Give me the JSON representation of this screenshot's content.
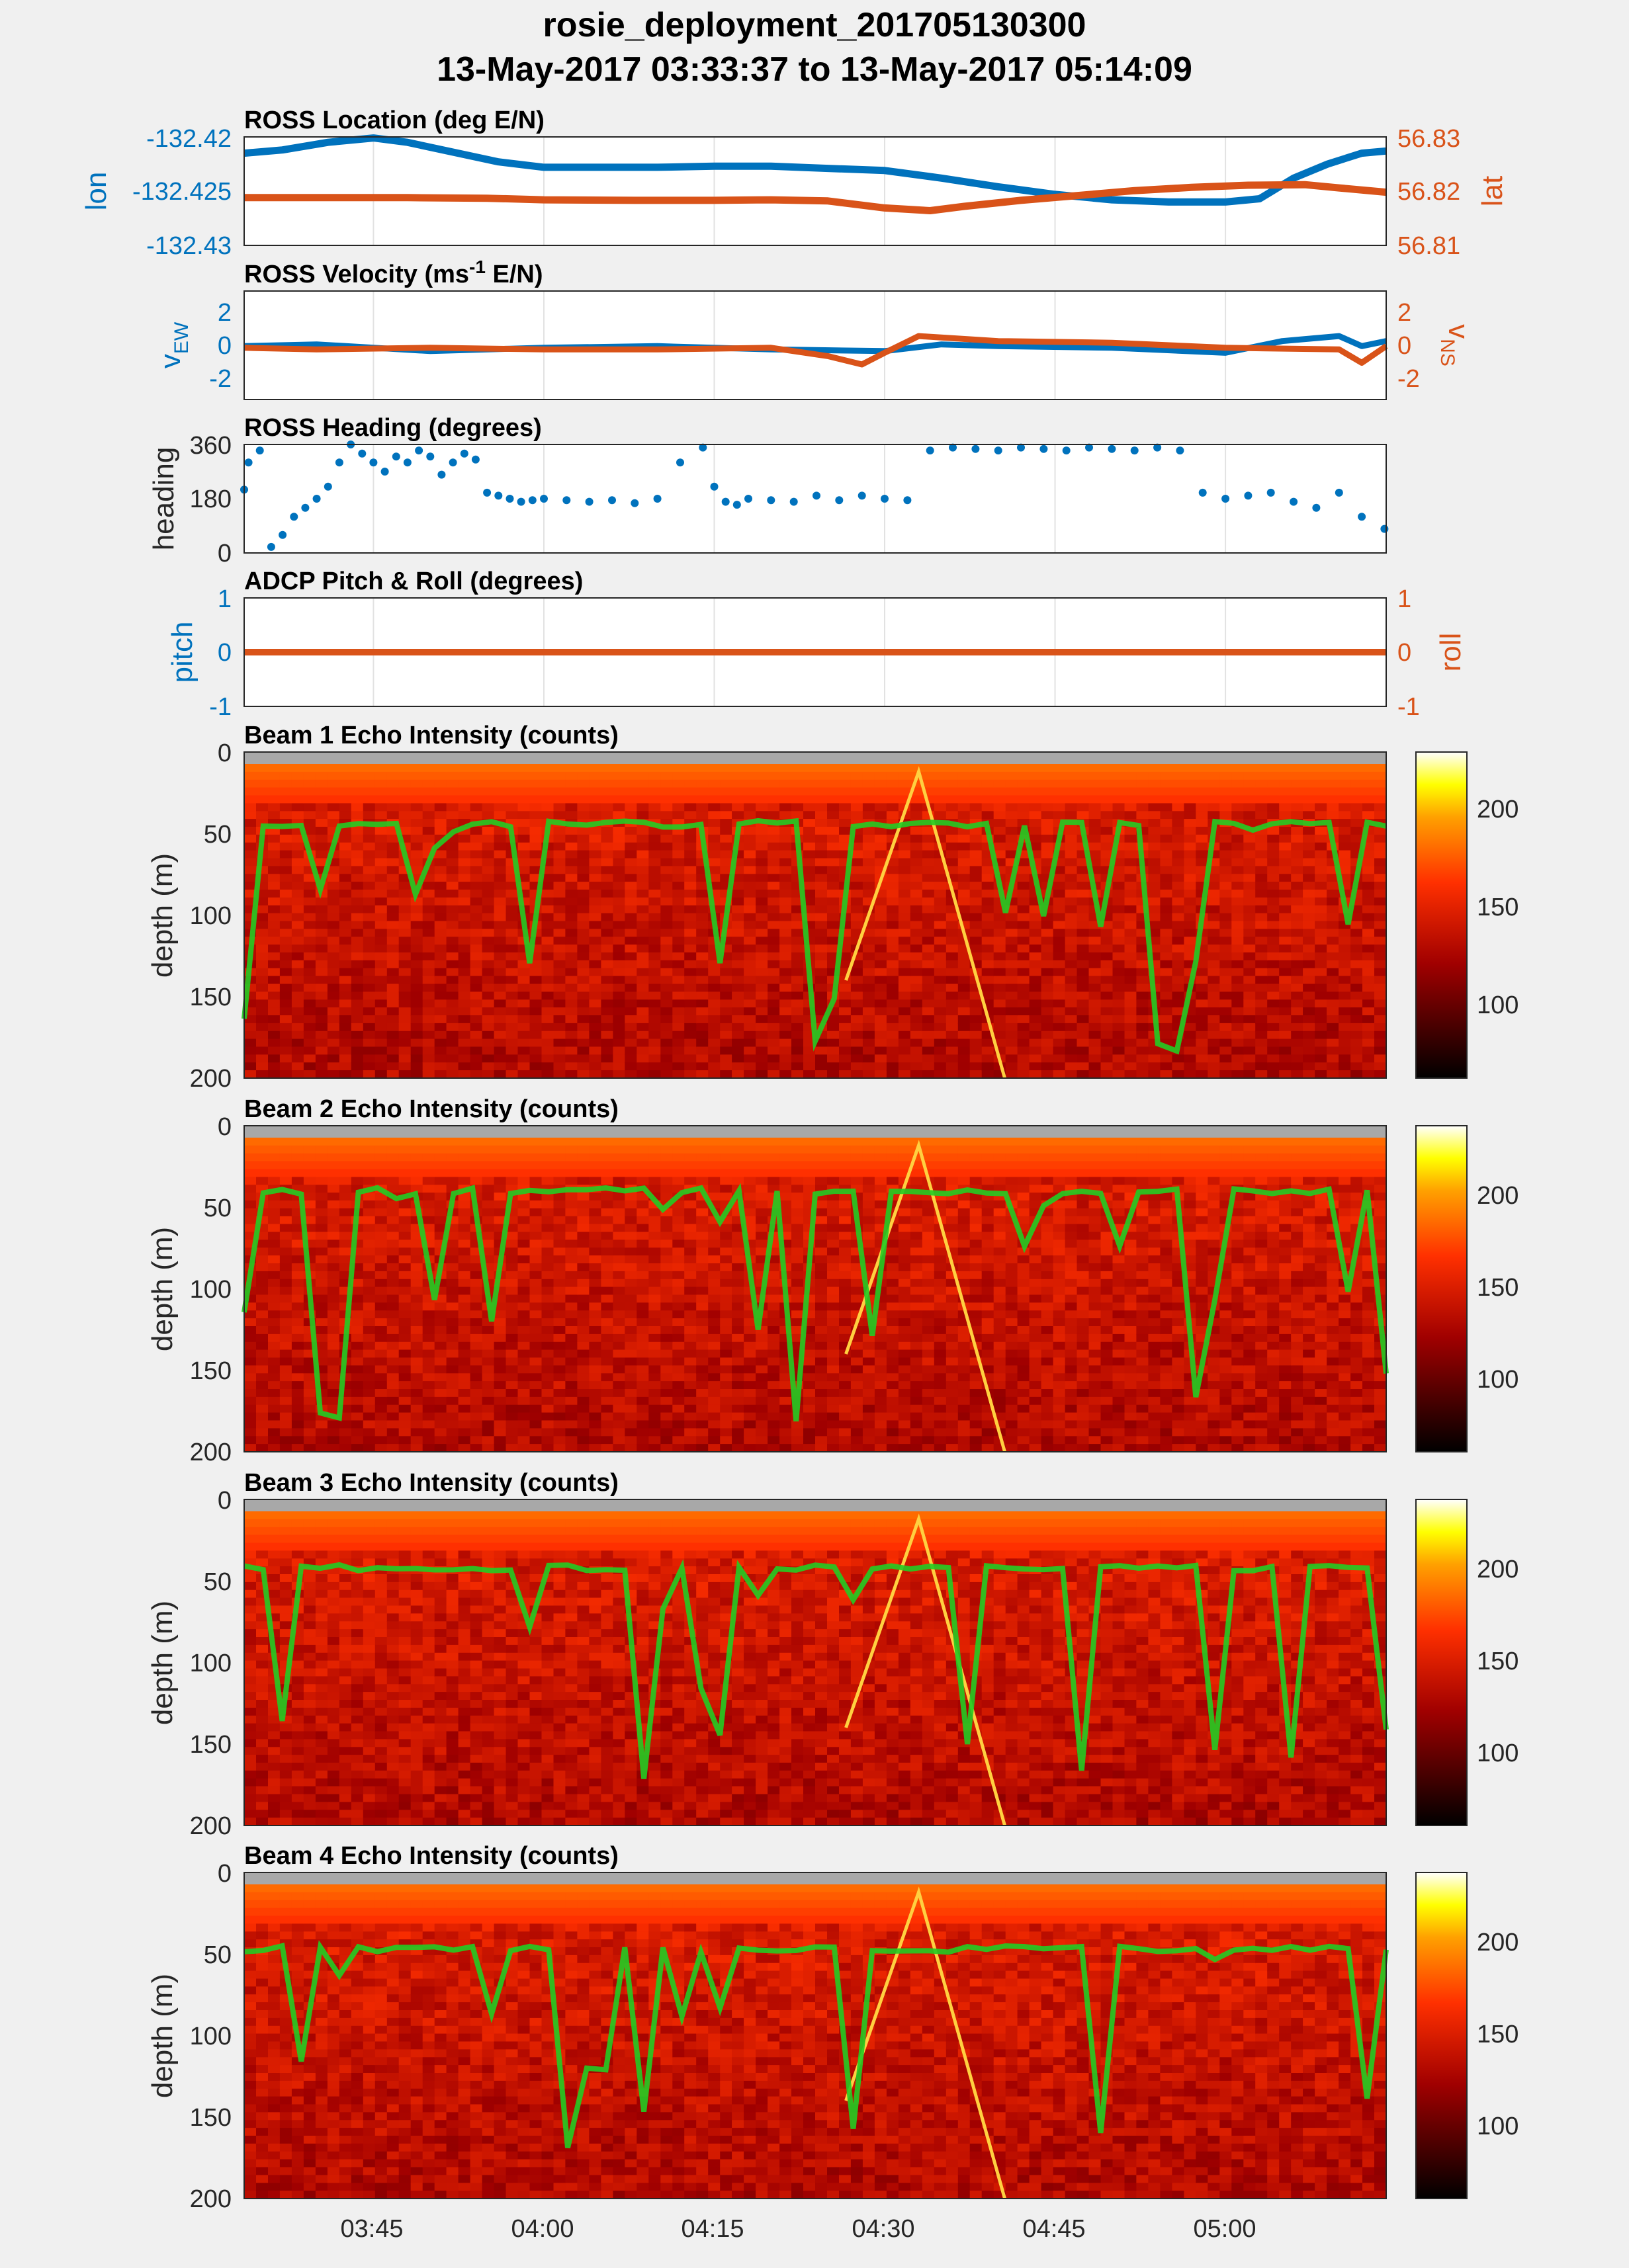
{
  "figure": {
    "title_line1": "rosie_deployment_201705130300",
    "title_line2": "13-May-2017 03:33:37 to 13-May-2017 05:14:09",
    "colors": {
      "blue": "#0072BD",
      "orange": "#D95319",
      "green": "#22CC22",
      "background": "#f0f0f0",
      "nodata": "#a8a8a8"
    }
  },
  "chart_data": [
    {
      "type": "line",
      "title": "ROSS Location (deg E/N)",
      "time_ticks": [
        "03:45",
        "04:00",
        "04:15",
        "04:30",
        "04:45",
        "05:00"
      ],
      "series": [
        {
          "name": "lon",
          "axis": "left",
          "color": "#0072BD",
          "x": [
            "03:33:37",
            "03:37",
            "03:41",
            "03:45",
            "03:48",
            "03:52",
            "03:56",
            "04:00",
            "04:05",
            "04:10",
            "04:15",
            "04:20",
            "04:25",
            "04:30",
            "04:35",
            "04:40",
            "04:45",
            "04:50",
            "04:55",
            "05:00",
            "05:03",
            "05:06",
            "05:09",
            "05:12",
            "05:14:09"
          ],
          "values": [
            -132.4215,
            -132.4212,
            -132.4205,
            -132.4201,
            -132.4205,
            -132.4214,
            -132.4223,
            -132.4228,
            -132.4228,
            -132.4228,
            -132.4227,
            -132.4227,
            -132.4229,
            -132.4231,
            -132.4238,
            -132.4246,
            -132.4253,
            -132.4258,
            -132.426,
            -132.426,
            -132.4257,
            -132.4238,
            -132.4225,
            -132.4215,
            -132.4213
          ]
        },
        {
          "name": "lat",
          "axis": "right",
          "color": "#D95319",
          "x": [
            "03:33:37",
            "03:40",
            "03:48",
            "03:55",
            "04:00",
            "04:08",
            "04:15",
            "04:20",
            "04:25",
            "04:30",
            "04:34",
            "04:37",
            "04:42",
            "04:47",
            "04:52",
            "04:57",
            "05:02",
            "05:07",
            "05:10",
            "05:14:09"
          ],
          "values": [
            56.8188,
            56.8188,
            56.8188,
            56.8187,
            56.8184,
            56.8183,
            56.8183,
            56.8184,
            56.8182,
            56.8169,
            56.8164,
            56.8172,
            56.8183,
            56.8192,
            56.8201,
            56.8207,
            56.8211,
            56.8212,
            56.8206,
            56.8198
          ]
        }
      ],
      "ylabel_left": "lon",
      "ylim_left": [
        -132.43,
        -132.42
      ],
      "yticks_left": [
        "-132.42",
        "-132.425",
        "-132.43"
      ],
      "ylabel_right": "lat",
      "ylim_right": [
        56.81,
        56.83
      ],
      "yticks_right": [
        "56.83",
        "56.82",
        "56.81"
      ]
    },
    {
      "type": "line",
      "title_main": "ROSS Velocity (ms",
      "title_sup": "-1",
      "title_end": " E/N)",
      "series": [
        {
          "name": "v_EW",
          "axis": "left",
          "color": "#0072BD",
          "x": [
            "03:33:37",
            "03:40",
            "03:50",
            "04:00",
            "04:10",
            "04:20",
            "04:30",
            "04:35",
            "04:40",
            "04:50",
            "05:00",
            "05:05",
            "05:10",
            "05:12",
            "05:14:09"
          ],
          "values": [
            0.2,
            0.3,
            -0.1,
            0.1,
            0.2,
            0.0,
            -0.1,
            0.3,
            0.2,
            0.1,
            -0.2,
            0.5,
            0.8,
            0.2,
            0.5
          ]
        },
        {
          "name": "v_NS",
          "axis": "right",
          "color": "#D95319",
          "x": [
            "03:33:37",
            "03:40",
            "03:50",
            "04:00",
            "04:10",
            "04:20",
            "04:25",
            "04:28",
            "04:30",
            "04:33",
            "04:40",
            "04:50",
            "05:00",
            "05:10",
            "05:12",
            "05:14:09"
          ],
          "values": [
            0.1,
            0.0,
            0.1,
            0.0,
            0.0,
            0.1,
            -0.4,
            -0.9,
            -0.2,
            0.8,
            0.5,
            0.4,
            0.1,
            0.0,
            -0.8,
            0.2
          ]
        }
      ],
      "ylabel_left_main": "v",
      "ylabel_left_sub": "EW",
      "ylim_left": [
        -3,
        3.5
      ],
      "yticks_left": [
        "2",
        "0",
        "-2"
      ],
      "ylabel_right_main": "v",
      "ylabel_right_sub": "NS",
      "ylim_right": [
        -3,
        3.5
      ],
      "yticks_right": [
        "2",
        "0",
        "-2"
      ]
    },
    {
      "type": "scatter",
      "title": "ROSS Heading (degrees)",
      "ylabel": "heading",
      "ylim": [
        0,
        360
      ],
      "yticks": [
        "360",
        "180",
        "0"
      ],
      "series": [
        {
          "name": "heading",
          "color": "#0072BD",
          "x": [
            "03:33:37",
            "03:34",
            "03:35",
            "03:36",
            "03:37",
            "03:38",
            "03:39",
            "03:40",
            "03:41",
            "03:42",
            "03:43",
            "03:44",
            "03:45",
            "03:46",
            "03:47",
            "03:48",
            "03:49",
            "03:50",
            "03:51",
            "03:52",
            "03:53",
            "03:54",
            "03:55",
            "03:56",
            "03:57",
            "03:58",
            "03:59",
            "04:00",
            "04:02",
            "04:04",
            "04:06",
            "04:08",
            "04:10",
            "04:12",
            "04:14",
            "04:15",
            "04:16",
            "04:17",
            "04:18",
            "04:20",
            "04:22",
            "04:24",
            "04:26",
            "04:28",
            "04:30",
            "04:32",
            "04:34",
            "04:36",
            "04:38",
            "04:40",
            "04:42",
            "04:44",
            "04:46",
            "04:48",
            "04:50",
            "04:52",
            "04:54",
            "04:56",
            "04:58",
            "05:00",
            "05:02",
            "05:04",
            "05:06",
            "05:08",
            "05:10",
            "05:12",
            "05:14"
          ],
          "values": [
            210,
            300,
            340,
            20,
            60,
            120,
            150,
            180,
            220,
            300,
            360,
            330,
            300,
            270,
            320,
            300,
            340,
            320,
            260,
            300,
            330,
            310,
            200,
            190,
            180,
            170,
            175,
            180,
            175,
            170,
            175,
            165,
            180,
            300,
            350,
            220,
            170,
            160,
            180,
            175,
            170,
            190,
            175,
            190,
            180,
            175,
            340,
            350,
            345,
            340,
            350,
            345,
            340,
            350,
            345,
            340,
            350,
            340,
            200,
            180,
            190,
            200,
            170,
            150,
            200,
            120,
            80
          ]
        }
      ]
    },
    {
      "type": "line",
      "title": "ADCP Pitch & Roll (degrees)",
      "series": [
        {
          "name": "pitch",
          "axis": "left",
          "color": "#0072BD",
          "x": [
            "03:33:37",
            "05:14:09"
          ],
          "values": [
            0,
            0
          ]
        },
        {
          "name": "roll",
          "axis": "right",
          "color": "#D95319",
          "x": [
            "03:33:37",
            "05:14:09"
          ],
          "values": [
            0,
            0
          ]
        }
      ],
      "ylabel_left": "pitch",
      "ylim_left": [
        -1,
        1
      ],
      "yticks_left": [
        "1",
        "0",
        "-1"
      ],
      "ylabel_right": "roll",
      "ylim_right": [
        -1,
        1
      ],
      "yticks_right": [
        "1",
        "0",
        "-1"
      ]
    },
    {
      "type": "heatmap",
      "title": "Beam 1 Echo Intensity (counts)",
      "ylabel": "depth (m)",
      "yticks": [
        "0",
        "50",
        "100",
        "150",
        "200"
      ],
      "ylim": [
        0,
        200
      ],
      "colorbar_ticks": [
        "100",
        "150",
        "200"
      ],
      "clim": [
        65,
        230
      ],
      "surface_line": {
        "color": "#22CC22",
        "typical_depth_m": 42
      }
    },
    {
      "type": "heatmap",
      "title": "Beam 2 Echo Intensity (counts)",
      "ylabel": "depth (m)",
      "yticks": [
        "0",
        "50",
        "100",
        "150",
        "200"
      ],
      "ylim": [
        0,
        200
      ],
      "colorbar_ticks": [
        "100",
        "150",
        "200"
      ],
      "clim": [
        65,
        235
      ],
      "surface_line": {
        "color": "#22CC22",
        "typical_depth_m": 38
      }
    },
    {
      "type": "heatmap",
      "title": "Beam 3 Echo Intensity (counts)",
      "ylabel": "depth (m)",
      "yticks": [
        "0",
        "50",
        "100",
        "150",
        "200"
      ],
      "ylim": [
        0,
        200
      ],
      "colorbar_ticks": [
        "100",
        "150",
        "200"
      ],
      "clim": [
        65,
        235
      ],
      "surface_line": {
        "color": "#22CC22",
        "typical_depth_m": 40
      }
    },
    {
      "type": "heatmap",
      "title": "Beam 4 Echo Intensity (counts)",
      "ylabel": "depth (m)",
      "yticks": [
        "0",
        "50",
        "100",
        "150",
        "200"
      ],
      "ylim": [
        0,
        200
      ],
      "colorbar_ticks": [
        "100",
        "150",
        "200"
      ],
      "clim": [
        65,
        235
      ],
      "surface_line": {
        "color": "#22CC22",
        "typical_depth_m": 45
      }
    }
  ]
}
